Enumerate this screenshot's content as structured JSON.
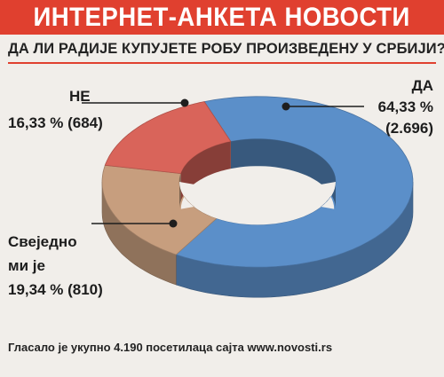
{
  "header": {
    "title": "ИНТЕРНЕТ-АНКЕТА НОВОСТИ"
  },
  "question": "ДА ЛИ РАДИЈЕ КУПУЈЕТЕ РОБУ ПРОИЗВЕДЕНУ У СРБИЈИ?",
  "footer": "Гласало је укупно 4.190 посетилаца сајта www.novosti.rs",
  "colors": {
    "accent": "#e0402f",
    "yes": "#5b8fc9",
    "no": "#d9645a",
    "neutral": "#c79e7e"
  },
  "chart_data": {
    "type": "pie",
    "title": "ДА ЛИ РАДИЈЕ КУПУЈЕТЕ РОБУ ПРОИЗВЕДЕНУ У СРБИЈИ?",
    "slices": [
      {
        "label": "ДА",
        "percent": 64.33,
        "percent_text": "64,33 %",
        "count_text": "(2.696)",
        "count": 2696
      },
      {
        "label": "Свеједно ми је",
        "label_lines": [
          "Свеједно",
          "ми је"
        ],
        "percent": 19.34,
        "percent_text": "19,34 % (810)",
        "count": 810
      },
      {
        "label": "НЕ",
        "percent": 16.33,
        "percent_text": "16,33 % (684)",
        "count": 684
      }
    ]
  }
}
